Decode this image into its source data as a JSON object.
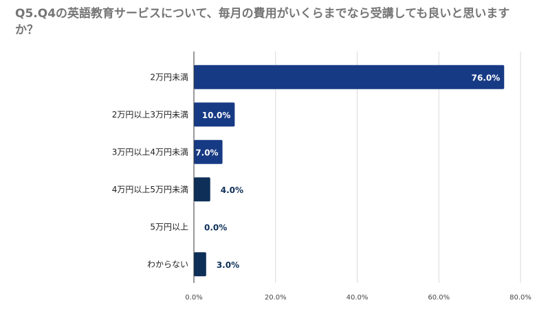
{
  "chart_data": {
    "type": "bar",
    "orientation": "horizontal",
    "title": "Q5.Q4の英語教育サービスについて、毎月の費用がいくらまでなら受講しても良いと思いますか？",
    "categories": [
      "2万円未満",
      "2万円以上3万円未満",
      "3万円以上4万円未満",
      "4万円以上5万円未満",
      "5万円以上",
      "わからない"
    ],
    "values": [
      76.0,
      10.0,
      7.0,
      4.0,
      0.0,
      3.0
    ],
    "value_labels": [
      "76.0%",
      "10.0%",
      "7.0%",
      "4.0%",
      "0.0%",
      "3.0%"
    ],
    "xlim": [
      0,
      80
    ],
    "x_ticks": [
      0,
      20,
      40,
      60,
      80
    ],
    "x_tick_labels": [
      "0.0%",
      "20.0%",
      "40.0%",
      "60.0%",
      "80.0%"
    ],
    "xlabel": "",
    "ylabel": "",
    "grid": "vertical",
    "legend": "none"
  },
  "colors": {
    "bar_primary": "#173a84",
    "bar_secondary": "#0d2f58",
    "label_outside": "#0d2f58",
    "label_inside": "#ffffff",
    "title": "#757575",
    "gridline": "#d9d9d9",
    "axis": "#333333"
  }
}
